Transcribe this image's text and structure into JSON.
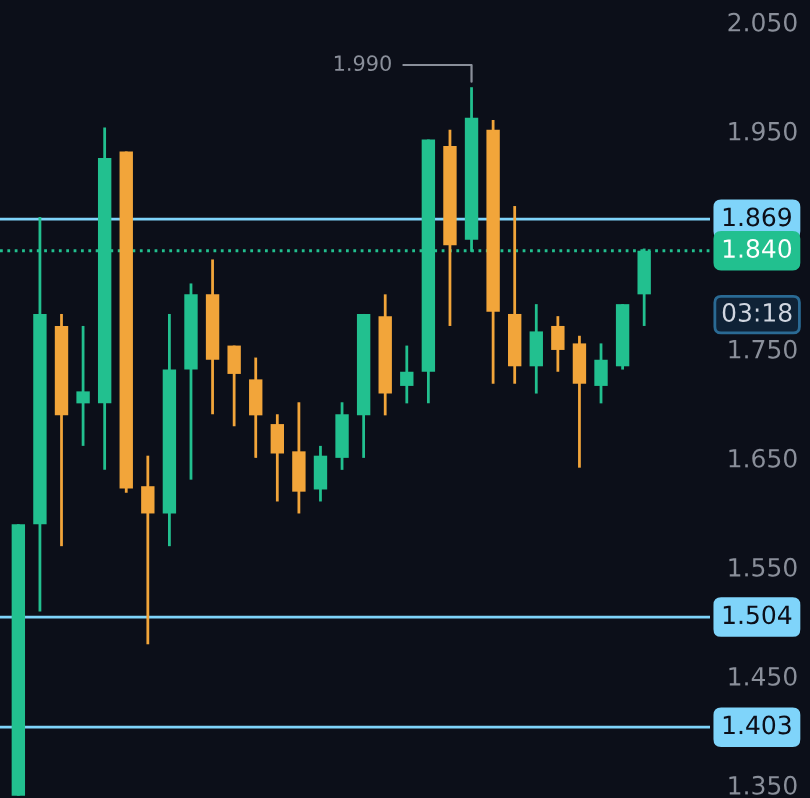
{
  "chart_data": {
    "type": "candlestick",
    "categories": [
      null,
      null,
      null,
      null,
      null,
      null,
      null,
      null,
      null,
      null,
      null,
      null,
      null,
      null,
      null,
      null,
      null,
      null,
      null,
      null,
      null,
      null,
      null,
      null,
      null,
      null,
      null,
      null,
      null,
      null
    ],
    "ohlc": [
      [
        1.34,
        1.589,
        1.34,
        1.589
      ],
      [
        1.589,
        1.871,
        1.509,
        1.782
      ],
      [
        1.771,
        1.782,
        1.569,
        1.689
      ],
      [
        1.7,
        1.771,
        1.661,
        1.711
      ],
      [
        1.7,
        1.953,
        1.639,
        1.925
      ],
      [
        1.931,
        1.931,
        1.618,
        1.622
      ],
      [
        1.624,
        1.652,
        1.479,
        1.599
      ],
      [
        1.599,
        1.782,
        1.569,
        1.731
      ],
      [
        1.731,
        1.81,
        1.63,
        1.8
      ],
      [
        1.8,
        1.832,
        1.69,
        1.74
      ],
      [
        1.753,
        1.753,
        1.679,
        1.727
      ],
      [
        1.722,
        1.742,
        1.65,
        1.689
      ],
      [
        1.681,
        1.69,
        1.61,
        1.654
      ],
      [
        1.656,
        1.701,
        1.599,
        1.619
      ],
      [
        1.621,
        1.661,
        1.61,
        1.652
      ],
      [
        1.65,
        1.701,
        1.639,
        1.69
      ],
      [
        1.689,
        1.782,
        1.65,
        1.782
      ],
      [
        1.78,
        1.8,
        1.689,
        1.709
      ],
      [
        1.716,
        1.753,
        1.7,
        1.729
      ],
      [
        1.729,
        1.942,
        1.7,
        1.942
      ],
      [
        1.936,
        1.951,
        1.771,
        1.845
      ],
      [
        1.85,
        1.99,
        1.839,
        1.962
      ],
      [
        1.951,
        1.96,
        1.718,
        1.784
      ],
      [
        1.782,
        1.881,
        1.718,
        1.734
      ],
      [
        1.734,
        1.791,
        1.709,
        1.766
      ],
      [
        1.771,
        1.78,
        1.729,
        1.749
      ],
      [
        1.755,
        1.762,
        1.641,
        1.718
      ],
      [
        1.716,
        1.755,
        1.7,
        1.74
      ],
      [
        1.734,
        1.791,
        1.731,
        1.791
      ],
      [
        1.8,
        1.842,
        1.771,
        1.84
      ]
    ],
    "colors": [
      "#22c08f",
      "#22c08f",
      "#f2a53a",
      "#22c08f",
      "#22c08f",
      "#f2a53a",
      "#f2a53a",
      "#22c08f",
      "#22c08f",
      "#f2a53a",
      "#f2a53a",
      "#f2a53a",
      "#f2a53a",
      "#f2a53a",
      "#22c08f",
      "#22c08f",
      "#22c08f",
      "#f2a53a",
      "#22c08f",
      "#22c08f",
      "#f2a53a",
      "#22c08f",
      "#f2a53a",
      "#f2a53a",
      "#22c08f",
      "#f2a53a",
      "#f2a53a",
      "#22c08f",
      "#22c08f",
      "#22c08f"
    ],
    "ylim": [
      1.338,
      2.07
    ],
    "yticks": [
      {
        "value": 1.35,
        "label": "1.350"
      },
      {
        "value": 1.45,
        "label": "1.450"
      },
      {
        "value": 1.55,
        "label": "1.550"
      },
      {
        "value": 1.65,
        "label": "1.650"
      },
      {
        "value": 1.75,
        "label": "1.750"
      },
      {
        "value": 1.95,
        "label": "1.950"
      },
      {
        "value": 2.05,
        "label": "2.050"
      }
    ],
    "tick_labels": "y",
    "grid": false,
    "legend": false,
    "ref_lines": [
      {
        "axis": "y",
        "value": 1.869,
        "label": "1.869",
        "color": "#7fd4fa",
        "line_style": "solid"
      },
      {
        "axis": "y",
        "value": 1.84,
        "label": "1.840",
        "color": "#22c08f",
        "line_style": "dotted"
      },
      {
        "axis": "y",
        "value": 1.504,
        "label": "1.504",
        "color": "#7fd4fa",
        "line_style": "solid"
      },
      {
        "axis": "y",
        "value": 1.403,
        "label": "1.403",
        "color": "#7fd4fa",
        "line_style": "solid"
      }
    ],
    "annotations": [
      "1.990",
      "03:18"
    ]
  }
}
